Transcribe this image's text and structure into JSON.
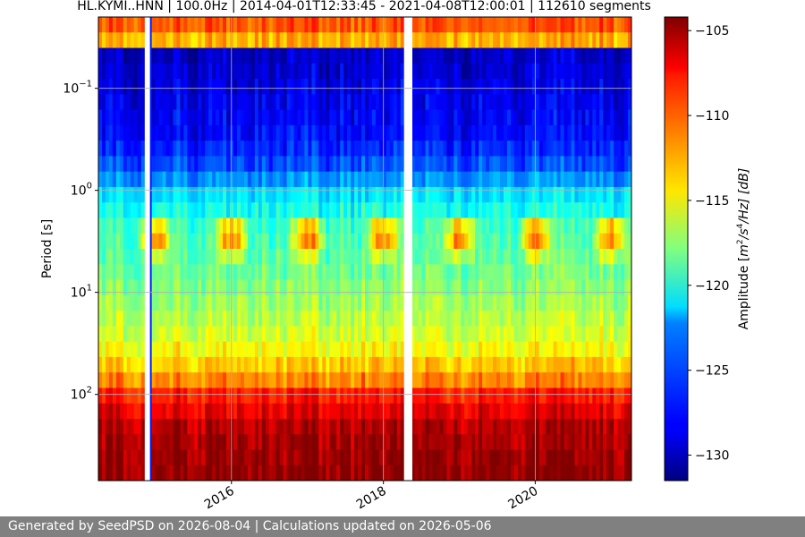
{
  "chart_data": {
    "type": "heatmap",
    "title": "HL.KYMI..HNN | 100.0Hz | 2014-04-01T12:33:45 - 2021-04-08T12:00:01 | 112610 segments",
    "xlabel": "",
    "ylabel": "Period [s]",
    "y_scale": "log",
    "y_inverted": true,
    "x_range": [
      "2014-04-01",
      "2021-04-08"
    ],
    "y_range": [
      0.02,
      700
    ],
    "x_ticks": [
      "2016",
      "2018",
      "2020"
    ],
    "y_ticks": [
      {
        "value": 0.1,
        "base": "10",
        "exp": "−1"
      },
      {
        "value": 1,
        "base": "10",
        "exp": "0"
      },
      {
        "value": 10,
        "base": "10",
        "exp": "1"
      },
      {
        "value": 100,
        "base": "10",
        "exp": "2"
      }
    ],
    "grid": true,
    "colormap": "jet",
    "colorbar": {
      "label": "Amplitude [m²/s⁴/Hz] [dB]",
      "label_parts": {
        "prefix": "Amplitude [",
        "m": "m",
        "m_exp": "2",
        "s": "/s",
        "s_exp": "4",
        "rest": "/Hz] [dB]"
      },
      "range": [
        -131.5,
        -104.2
      ],
      "ticks": [
        -105,
        -110,
        -115,
        -120,
        -125,
        -130
      ]
    },
    "gaps": [
      {
        "start": "2014-11-10",
        "end": "2014-12-05"
      },
      {
        "start": "2018-04-10",
        "end": "2018-05-20"
      }
    ]
  },
  "footer": {
    "text": "Generated by SeedPSD on 2026-08-04 | Calculations updated on 2026-05-06"
  }
}
